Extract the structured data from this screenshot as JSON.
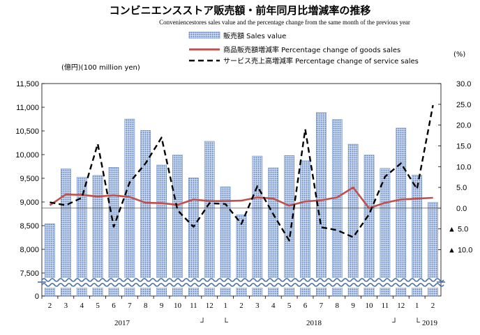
{
  "title": "コンビニエンスストア販売額・前年同月比増減率の推移",
  "subtitle": "Conveniencestores sales value and the percentage change from the same month of the previous year",
  "left_unit": "(億円)(100 million yen)",
  "right_unit": "(%)",
  "colors": {
    "bar_fill": "#9db4db",
    "bar_edge": "#5a7fb8",
    "goods_line": "#c0504d",
    "service_line": "#000000",
    "wave": "#4a6fa8"
  },
  "chart_data": {
    "type": "bar",
    "categories": [
      "2",
      "3",
      "4",
      "5",
      "6",
      "7",
      "8",
      "9",
      "10",
      "11",
      "12",
      "1",
      "2",
      "3",
      "4",
      "5",
      "6",
      "7",
      "8",
      "9",
      "10",
      "11",
      "12",
      "1",
      "2"
    ],
    "year_labels": [
      {
        "text": "2017",
        "at_index": 5
      },
      {
        "text": "2018",
        "at_index": 17
      },
      {
        "text": "2019",
        "at_index": 24
      }
    ],
    "year_break_marks": [
      "┘",
      "└",
      "┘",
      "└"
    ],
    "series": [
      {
        "name": "販売額 Sales value",
        "kind": "bar",
        "axis": "left",
        "values": [
          8540,
          9700,
          9520,
          9560,
          9730,
          10750,
          10510,
          9780,
          9990,
          9510,
          10280,
          9320,
          8730,
          9970,
          9720,
          9980,
          9870,
          10890,
          10740,
          10220,
          9990,
          9710,
          10560,
          9570,
          8990
        ]
      },
      {
        "name": "商品販売額増減率 Percentage change of goods sales",
        "kind": "line",
        "axis": "right",
        "values": [
          0.7,
          3.3,
          3.2,
          2.8,
          3.1,
          2.7,
          1.3,
          1.2,
          0.8,
          2.1,
          1.7,
          1.7,
          1.8,
          2.6,
          2.3,
          0.6,
          1.6,
          1.9,
          2.6,
          5.0,
          0.0,
          1.3,
          2.1,
          2.3,
          2.5
        ]
      },
      {
        "name": "サービス売上高増減率 Percentage change of service sales",
        "kind": "line-dashed",
        "axis": "right",
        "values": [
          1.4,
          0.7,
          2.5,
          15.5,
          -4.5,
          6.2,
          10.8,
          17.0,
          -0.5,
          -4.5,
          1.2,
          1.0,
          -3.8,
          5.3,
          -1.5,
          -7.8,
          19.0,
          -4.6,
          -5.3,
          -7.0,
          -1.5,
          7.6,
          10.8,
          4.6,
          24.8
        ]
      }
    ],
    "left_axis": {
      "ylim": [
        0,
        11500
      ],
      "ticks": [
        "0",
        "7,500",
        "8,000",
        "8,500",
        "9,000",
        "9,500",
        "10,000",
        "10,500",
        "11,000",
        "11,500"
      ],
      "tick_values": [
        0,
        7500,
        8000,
        8500,
        9000,
        9500,
        10000,
        10500,
        11000,
        11500
      ]
    },
    "right_axis": {
      "ylim": [
        -10,
        30
      ],
      "ticks": [
        "30.0",
        "25.0",
        "20.0",
        "15.0",
        "10.0",
        "5.0",
        "0.0",
        "▲ 5.0",
        "▲ 10.0"
      ],
      "tick_values": [
        30,
        25,
        20,
        15,
        10,
        5,
        0,
        -5,
        -10
      ]
    },
    "axis_break": true,
    "grid": false,
    "legend_position": "top-center"
  }
}
